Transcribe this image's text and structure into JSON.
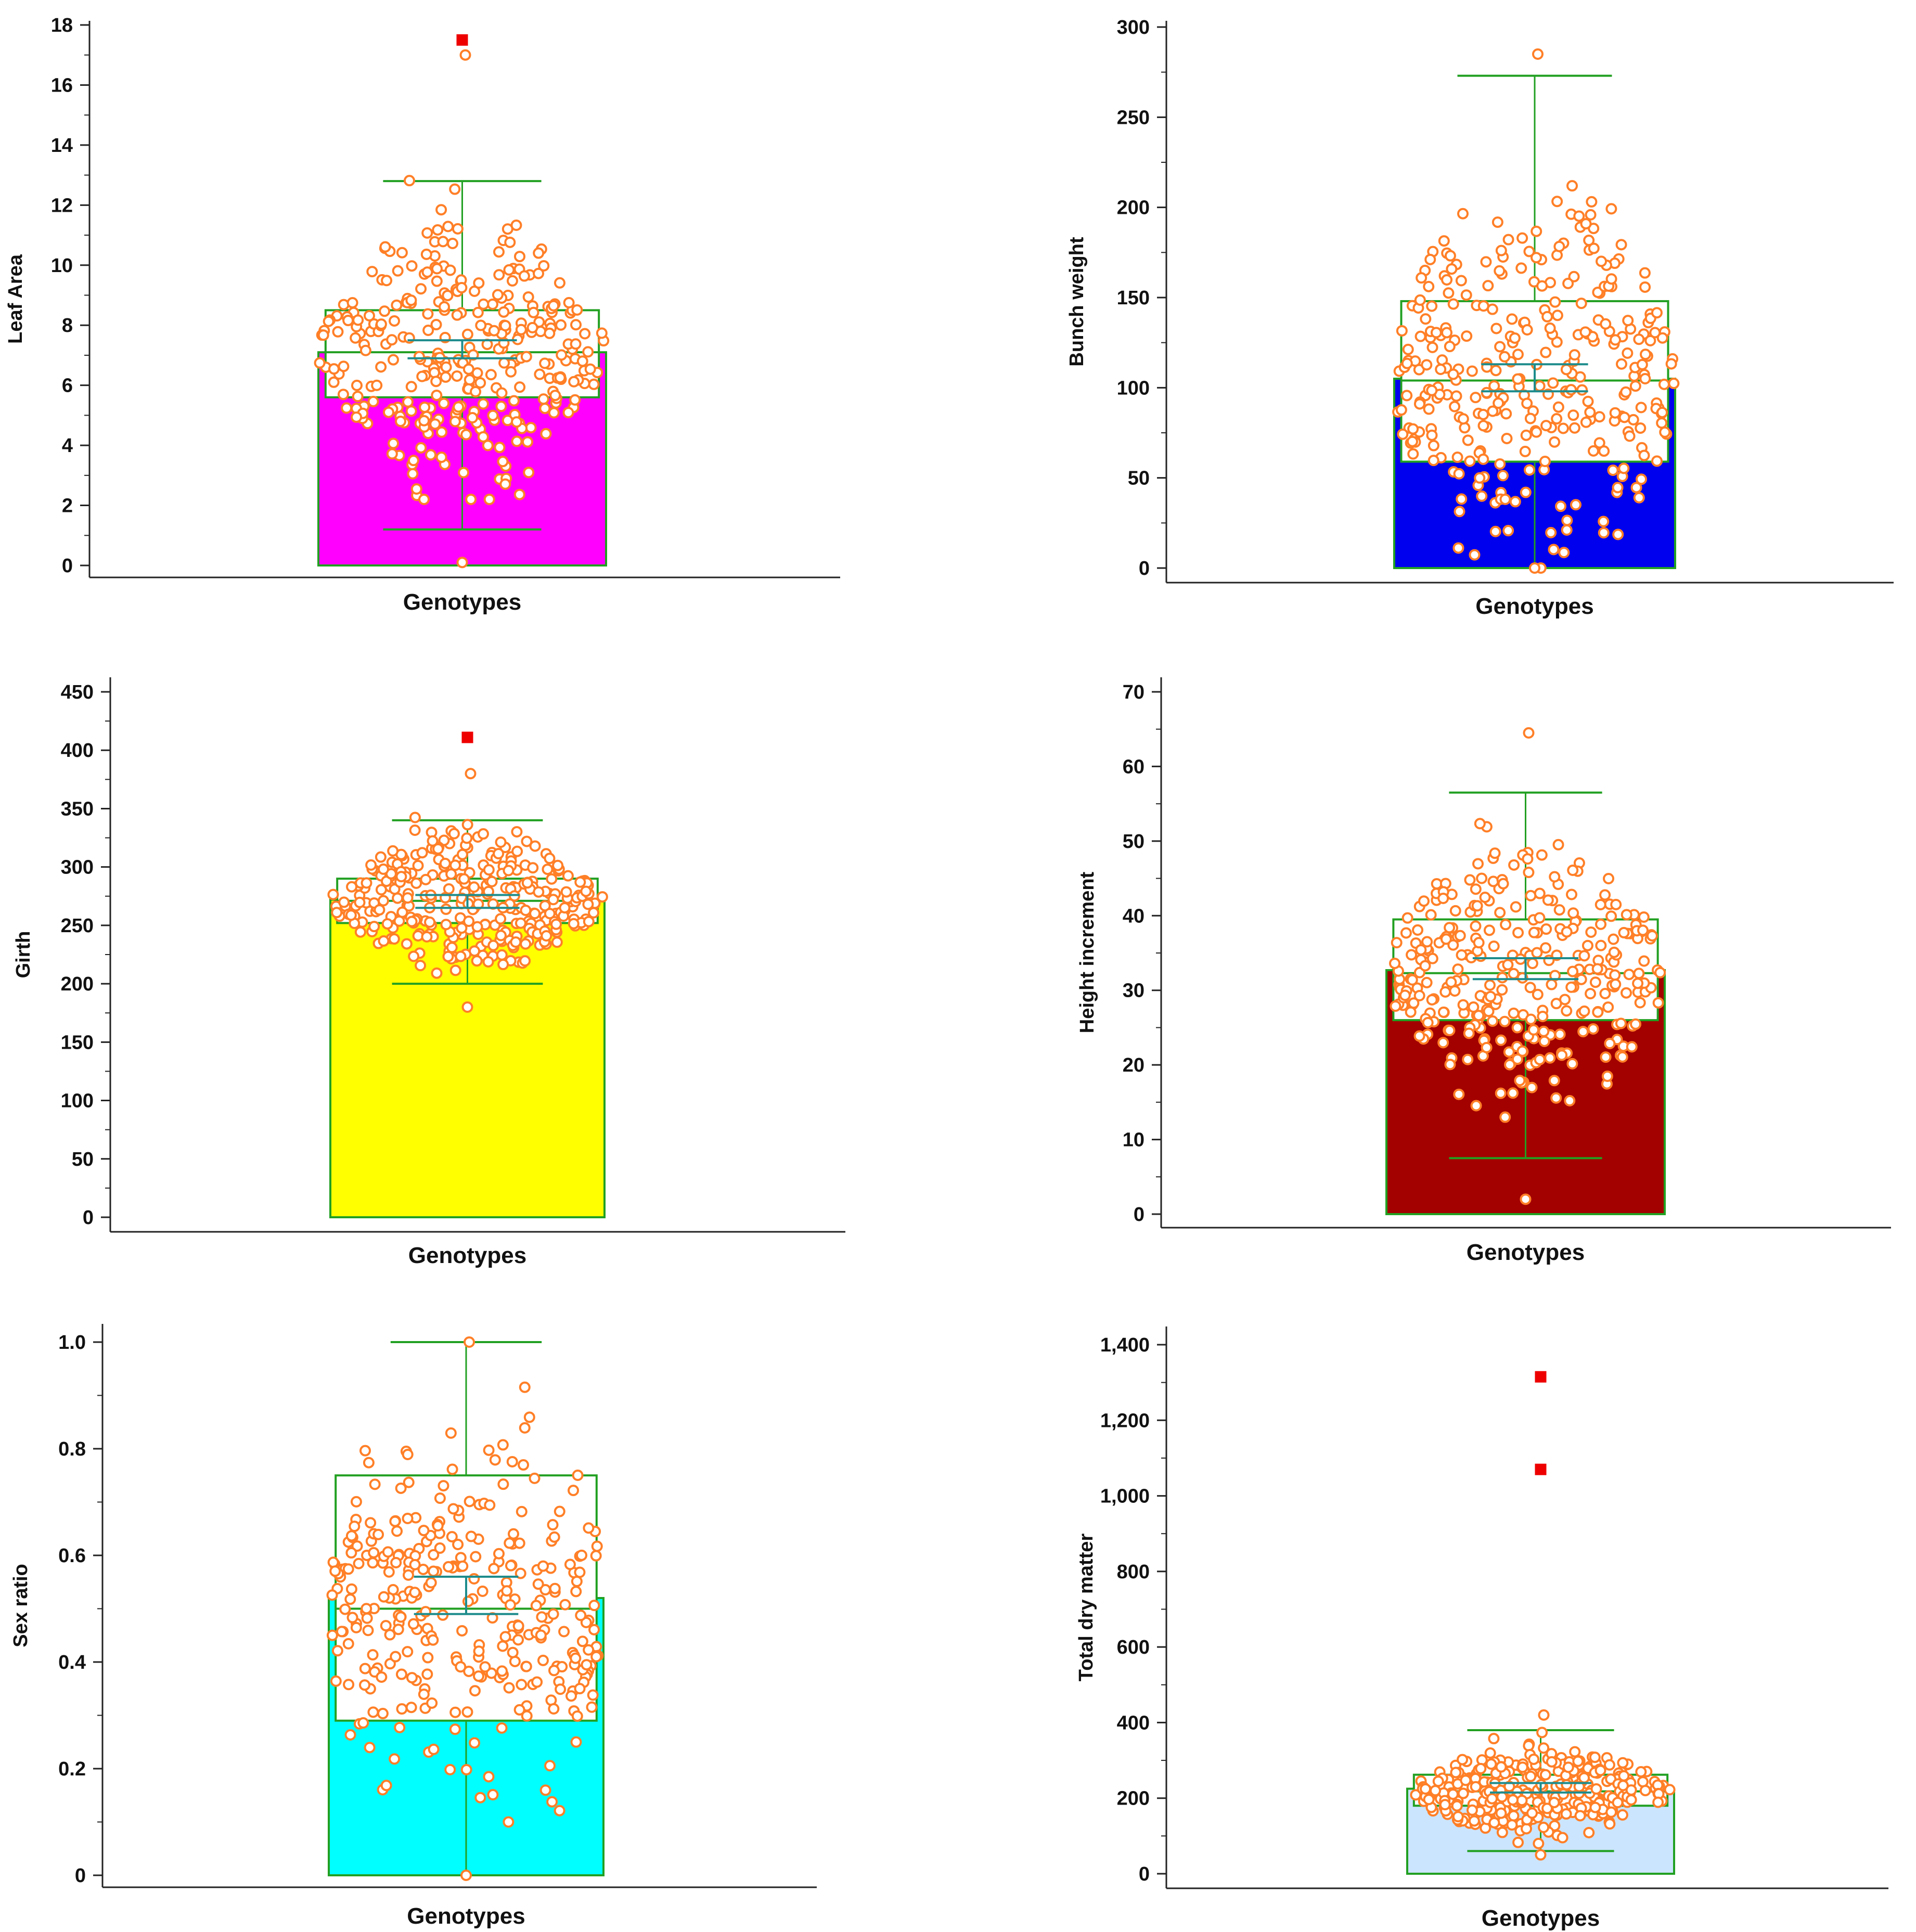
{
  "chart_data": [
    {
      "type": "bar",
      "panel": "top-left",
      "title": "",
      "xlabel": "Genotypes",
      "ylabel": "Leaf Area",
      "ylim": [
        0,
        18
      ],
      "yticks": [
        0,
        2,
        4,
        6,
        8,
        10,
        12,
        14,
        16,
        18
      ],
      "ytick_labels": [
        "0",
        "2",
        "4",
        "6",
        "8",
        "10",
        "12",
        "14",
        "16",
        "18"
      ],
      "bar_value": 7.1,
      "bar_color": "#ff00ff",
      "box": {
        "q1": 5.6,
        "median": 7.1,
        "q3": 8.5,
        "whisker_low": 1.2,
        "whisker_high": 12.8
      },
      "mean_ci": {
        "mean": 7.2,
        "low": 6.9,
        "high": 7.5
      },
      "outliers": [
        17.5
      ],
      "points_min": 0.1,
      "points_max": 17.0,
      "points_dense_low": 2.2,
      "points_dense_high": 13.5
    },
    {
      "type": "bar",
      "panel": "top-right",
      "title": "",
      "xlabel": "Genotypes",
      "ylabel": "Bunch weight",
      "ylim": [
        0,
        300
      ],
      "yticks": [
        0,
        50,
        100,
        150,
        200,
        250,
        300
      ],
      "ytick_labels": [
        "0",
        "50",
        "100",
        "150",
        "200",
        "250",
        "300"
      ],
      "bar_value": 105,
      "bar_color": "#0000ee",
      "box": {
        "q1": 59,
        "median": 104,
        "q3": 148,
        "whisker_low": 0,
        "whisker_high": 273
      },
      "mean_ci": {
        "mean": 105,
        "low": 98,
        "high": 113
      },
      "outliers": [],
      "points_min": 0,
      "points_max": 285,
      "points_dense_low": 0,
      "points_dense_high": 250
    },
    {
      "type": "bar",
      "panel": "middle-left",
      "title": "",
      "xlabel": "Genotypes",
      "ylabel": "Girth",
      "ylim": [
        0,
        450
      ],
      "yticks": [
        0,
        50,
        100,
        150,
        200,
        250,
        300,
        350,
        400,
        450
      ],
      "ytick_labels": [
        "0",
        "50",
        "100",
        "150",
        "200",
        "250",
        "300",
        "350",
        "400",
        "450"
      ],
      "bar_value": 272,
      "bar_color": "#ffff00",
      "box": {
        "q1": 252,
        "median": 271,
        "q3": 290,
        "whisker_low": 200,
        "whisker_high": 340
      },
      "mean_ci": {
        "mean": 271,
        "low": 265,
        "high": 276
      },
      "outliers": [
        411
      ],
      "points_min": 180,
      "points_max": 380,
      "points_dense_low": 200,
      "points_dense_high": 355
    },
    {
      "type": "bar",
      "panel": "middle-right",
      "title": "",
      "xlabel": "Genotypes",
      "ylabel": "Height increment",
      "ylim": [
        0,
        70
      ],
      "yticks": [
        0,
        10,
        20,
        30,
        40,
        50,
        60,
        70
      ],
      "ytick_labels": [
        "0",
        "10",
        "20",
        "30",
        "40",
        "50",
        "60",
        "70"
      ],
      "bar_value": 32.7,
      "bar_color": "#a30000",
      "box": {
        "q1": 26,
        "median": 32.3,
        "q3": 39.5,
        "whisker_low": 7.5,
        "whisker_high": 56.5
      },
      "mean_ci": {
        "mean": 32.5,
        "low": 31.5,
        "high": 34.3
      },
      "outliers": [],
      "points_min": 2,
      "points_max": 64.5,
      "points_dense_low": 13,
      "points_dense_high": 57
    },
    {
      "type": "bar",
      "panel": "bottom-left",
      "title": "",
      "xlabel": "Genotypes",
      "ylabel": "Sex ratio",
      "ylim": [
        0,
        1.0
      ],
      "yticks": [
        0,
        0.2,
        0.4,
        0.6,
        0.8,
        1.0
      ],
      "ytick_labels": [
        "0",
        "0.2",
        "0.4",
        "0.6",
        "0.8",
        "1.0"
      ],
      "bar_value": 0.52,
      "bar_color": "#00ffff",
      "box": {
        "q1": 0.29,
        "median": 0.5,
        "q3": 0.75,
        "whisker_low": 0,
        "whisker_high": 1.0
      },
      "mean_ci": {
        "mean": 0.52,
        "low": 0.49,
        "high": 0.56
      },
      "outliers": [],
      "points_min": 0,
      "points_max": 1.0,
      "points_dense_low": 0.1,
      "points_dense_high": 0.92
    },
    {
      "type": "bar",
      "panel": "bottom-right",
      "title": "",
      "xlabel": "Genotypes",
      "ylabel": "Total dry matter",
      "ylim": [
        0,
        1400
      ],
      "yticks": [
        0,
        200,
        400,
        600,
        800,
        1000,
        1200,
        1400
      ],
      "ytick_labels": [
        "0",
        "200",
        "400",
        "600",
        "800",
        "1,000",
        "1,200",
        "1,400"
      ],
      "bar_value": 225,
      "bar_color": "#cce5ff",
      "box": {
        "q1": 180,
        "median": 218,
        "q3": 262,
        "whisker_low": 60,
        "whisker_high": 380
      },
      "mean_ci": {
        "mean": 225,
        "low": 215,
        "high": 240
      },
      "outliers": [
        1070,
        1315
      ],
      "points_min": 50,
      "points_max": 420,
      "points_dense_low": 80,
      "points_dense_high": 380
    }
  ]
}
